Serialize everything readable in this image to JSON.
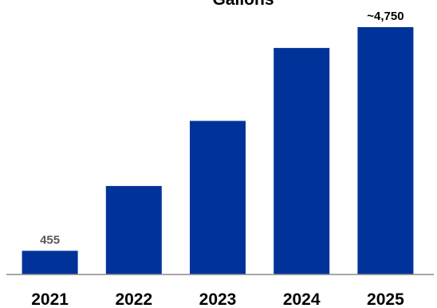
{
  "colors": {
    "bar": "#003399",
    "baseline": "#8c8c8c",
    "label_dark": "#000000",
    "label_grey": "#595959"
  },
  "chart_data": {
    "type": "bar",
    "title": "Gallons",
    "xlabel": "",
    "ylabel": "",
    "categories": [
      "2021",
      "2022",
      "2023",
      "2024",
      "2025"
    ],
    "values": [
      455,
      1700,
      2950,
      4350,
      4750
    ],
    "data_labels": [
      "455",
      "",
      "",
      "",
      "~4,750"
    ],
    "ylim": [
      0,
      5000
    ],
    "grid": false,
    "legend": "none"
  }
}
